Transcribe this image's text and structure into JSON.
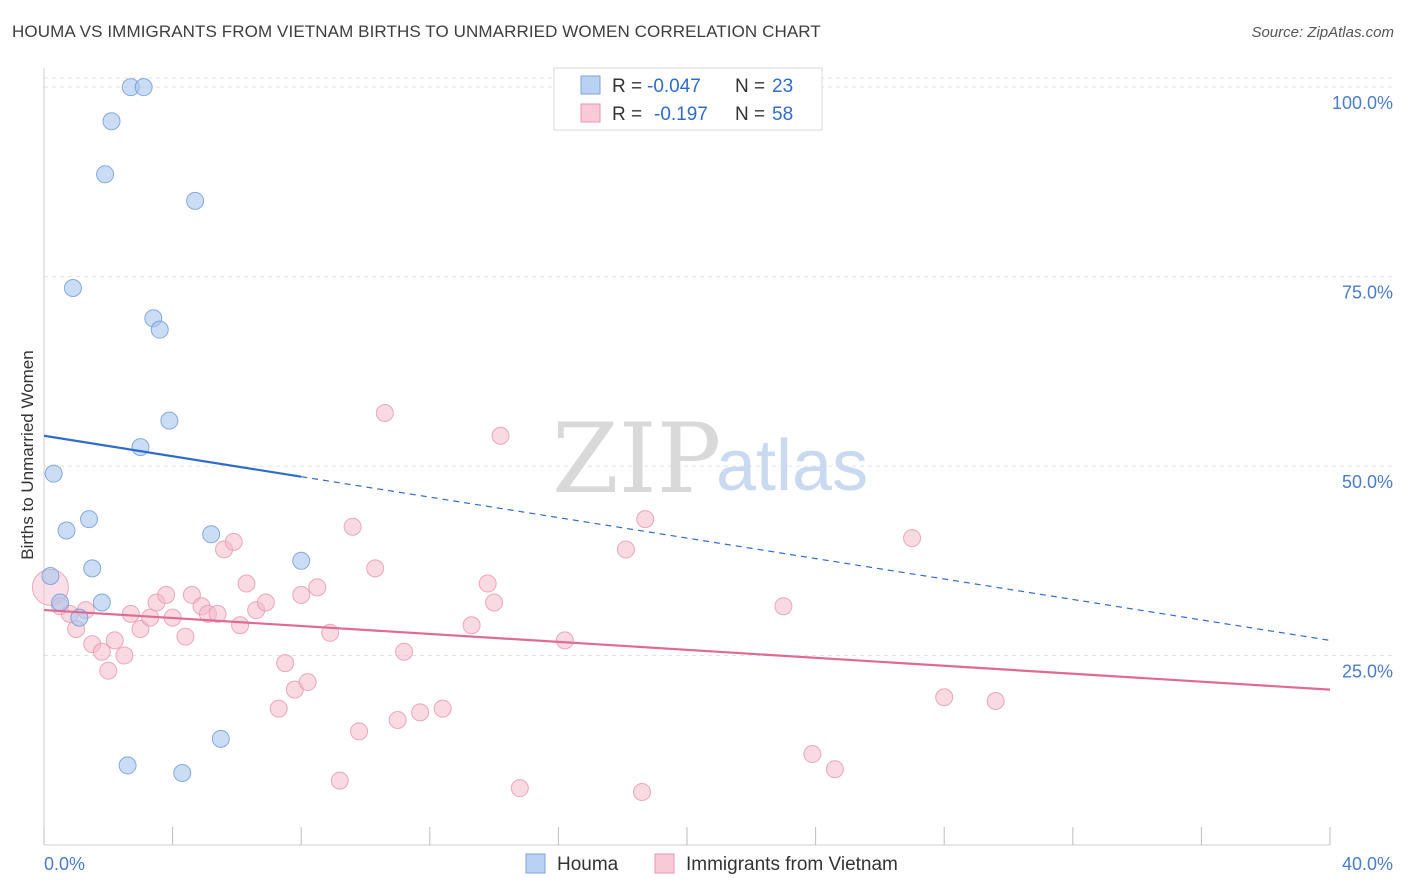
{
  "header": {
    "title": "HOUMA VS IMMIGRANTS FROM VIETNAM BIRTHS TO UNMARRIED WOMEN CORRELATION CHART",
    "source": "Source: ZipAtlas.com"
  },
  "watermark": {
    "zip": "ZIP",
    "atlas": "atlas"
  },
  "chart_data": {
    "type": "scatter",
    "title": "HOUMA VS IMMIGRANTS FROM VIETNAM BIRTHS TO UNMARRIED WOMEN CORRELATION CHART",
    "xlabel": "",
    "ylabel": "Births to Unmarried Women",
    "xlim": [
      0,
      40
    ],
    "ylim": [
      0,
      102
    ],
    "x_tick_labels": [
      "0.0%",
      "40.0%"
    ],
    "y_ticks": [
      25,
      50,
      75,
      100
    ],
    "y_tick_labels": [
      "25.0%",
      "50.0%",
      "75.0%",
      "100.0%"
    ],
    "grid": true,
    "legend_placement": "top-center",
    "colors": {
      "houma": "#a9c6ee",
      "houma_line": "#2f6cc9",
      "vietnam": "#f4b9cb",
      "vietnam_line": "#e06a94",
      "tick_text": "#4a7cc9"
    },
    "stats": [
      {
        "r_label": "R =",
        "r_value": "-0.047",
        "n_label": "N =",
        "n_value": "23"
      },
      {
        "r_label": "R =",
        "r_value": "-0.197",
        "n_label": "N =",
        "n_value": "58"
      }
    ],
    "series": [
      {
        "name": "Houma",
        "points": [
          [
            0.2,
            35.5
          ],
          [
            0.3,
            49.0
          ],
          [
            0.5,
            32.0
          ],
          [
            0.7,
            41.5
          ],
          [
            0.9,
            73.5
          ],
          [
            1.1,
            30.0
          ],
          [
            1.4,
            43.0
          ],
          [
            1.5,
            36.5
          ],
          [
            1.8,
            32.0
          ],
          [
            1.9,
            88.5
          ],
          [
            2.1,
            95.5
          ],
          [
            2.6,
            10.5
          ],
          [
            2.7,
            100.0
          ],
          [
            3.0,
            52.5
          ],
          [
            3.1,
            100.0
          ],
          [
            3.4,
            69.5
          ],
          [
            3.6,
            68.0
          ],
          [
            3.9,
            56.0
          ],
          [
            4.3,
            9.5
          ],
          [
            4.7,
            85.0
          ],
          [
            5.2,
            41.0
          ],
          [
            5.5,
            14.0
          ],
          [
            8.0,
            37.5
          ]
        ],
        "trend": {
          "x_start": 0,
          "y_start": 54,
          "x_solid_end": 8.0,
          "x_end": 40,
          "y_end": 27
        }
      },
      {
        "name": "Immigrants from Vietnam",
        "points": [
          [
            0.2,
            34.0
          ],
          [
            0.5,
            31.5
          ],
          [
            0.8,
            30.5
          ],
          [
            1.0,
            28.5
          ],
          [
            1.3,
            31.0
          ],
          [
            1.5,
            26.5
          ],
          [
            1.8,
            25.5
          ],
          [
            2.0,
            23.0
          ],
          [
            2.2,
            27.0
          ],
          [
            2.5,
            25.0
          ],
          [
            2.7,
            30.5
          ],
          [
            3.0,
            28.5
          ],
          [
            3.3,
            30.0
          ],
          [
            3.5,
            32.0
          ],
          [
            3.8,
            33.0
          ],
          [
            4.0,
            30.0
          ],
          [
            4.4,
            27.5
          ],
          [
            4.6,
            33.0
          ],
          [
            4.9,
            31.5
          ],
          [
            5.1,
            30.5
          ],
          [
            5.4,
            30.5
          ],
          [
            5.6,
            39.0
          ],
          [
            5.9,
            40.0
          ],
          [
            6.1,
            29.0
          ],
          [
            6.3,
            34.5
          ],
          [
            6.6,
            31.0
          ],
          [
            6.9,
            32.0
          ],
          [
            7.3,
            18.0
          ],
          [
            7.5,
            24.0
          ],
          [
            7.8,
            20.5
          ],
          [
            8.0,
            33.0
          ],
          [
            8.2,
            21.5
          ],
          [
            8.5,
            34.0
          ],
          [
            8.9,
            28.0
          ],
          [
            9.2,
            8.5
          ],
          [
            9.6,
            42.0
          ],
          [
            9.8,
            15.0
          ],
          [
            10.3,
            36.5
          ],
          [
            10.6,
            57.0
          ],
          [
            11.0,
            16.5
          ],
          [
            11.2,
            25.5
          ],
          [
            11.7,
            17.5
          ],
          [
            12.4,
            18.0
          ],
          [
            13.3,
            29.0
          ],
          [
            13.8,
            34.5
          ],
          [
            14.0,
            32.0
          ],
          [
            14.2,
            54.0
          ],
          [
            14.8,
            7.5
          ],
          [
            16.2,
            27.0
          ],
          [
            18.1,
            39.0
          ],
          [
            18.6,
            7.0
          ],
          [
            18.7,
            43.0
          ],
          [
            23.0,
            31.5
          ],
          [
            23.9,
            12.0
          ],
          [
            24.6,
            10.0
          ],
          [
            27.0,
            40.5
          ],
          [
            28.0,
            19.5
          ],
          [
            29.6,
            19.0
          ]
        ],
        "trend": {
          "x_start": 0,
          "y_start": 31,
          "x_end": 40,
          "y_end": 20.5
        }
      }
    ]
  }
}
